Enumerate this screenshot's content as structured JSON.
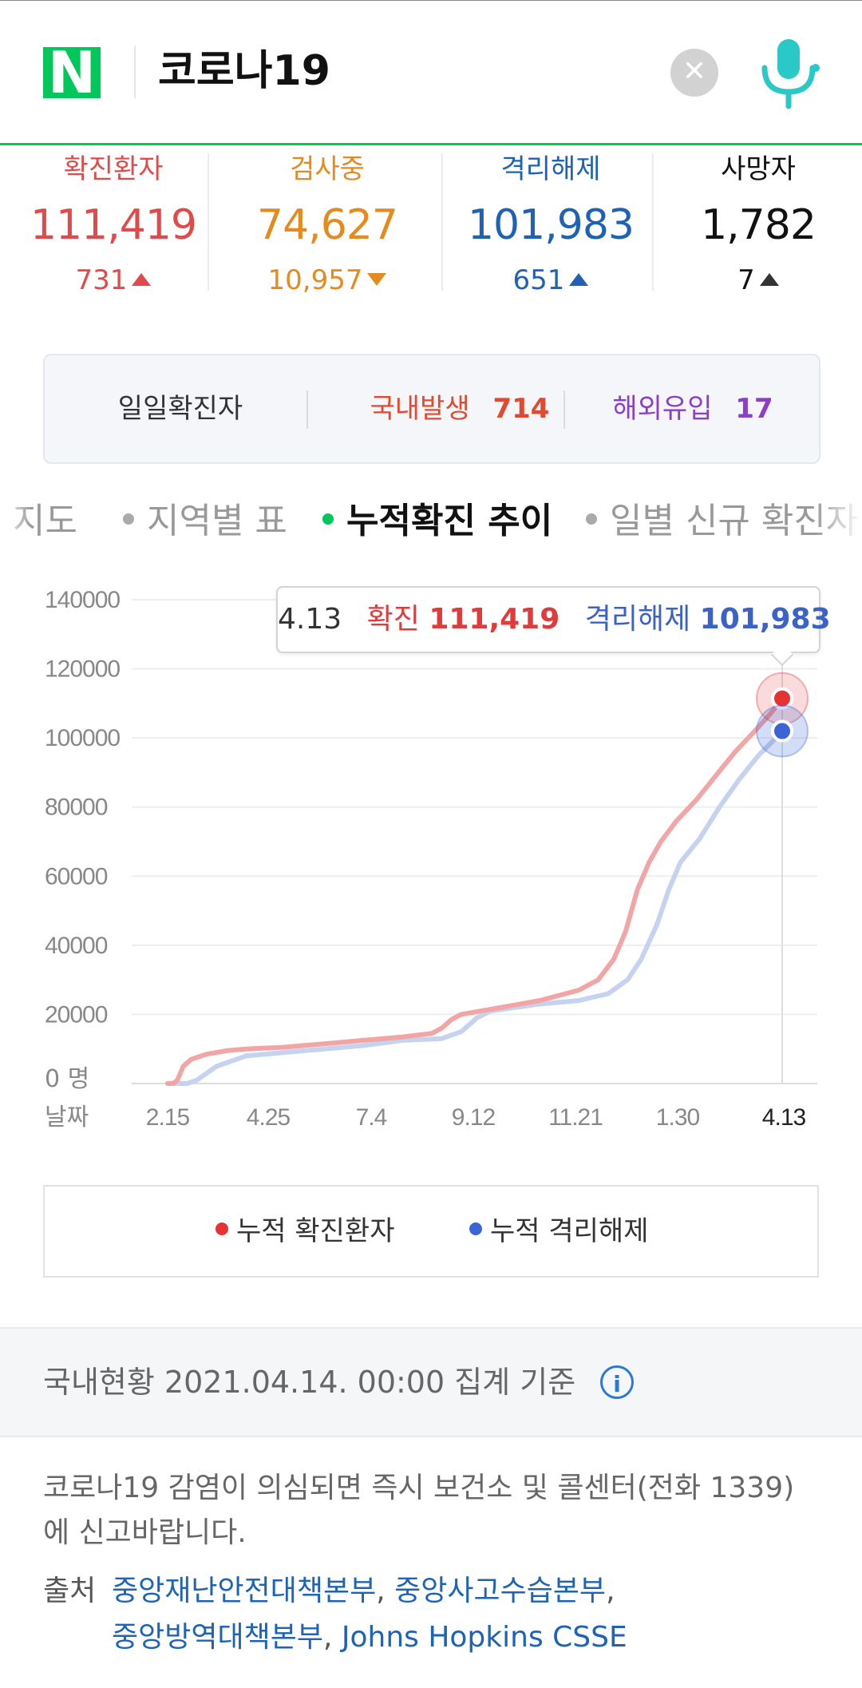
{
  "header": {
    "logo": "N",
    "query": "코로나19",
    "clear_icon": "close-icon",
    "mic_icon": "microphone-icon"
  },
  "stats": [
    {
      "label": "확진환자",
      "value": "111,419",
      "change": "731",
      "direction": "up",
      "color": "#e04a4a"
    },
    {
      "label": "검사중",
      "value": "74,627",
      "change": "10,957",
      "direction": "down",
      "color": "#e58a1f"
    },
    {
      "label": "격리해제",
      "value": "101,983",
      "change": "651",
      "direction": "up",
      "color": "#1f62b4"
    },
    {
      "label": "사망자",
      "value": "1,782",
      "change": "7",
      "direction": "up",
      "color": "#111111"
    }
  ],
  "daily": {
    "label": "일일확진자",
    "domestic_label": "국내발생",
    "domestic_value": "714",
    "overseas_label": "해외유입",
    "overseas_value": "17"
  },
  "tabs": [
    {
      "label": "지도",
      "active": false
    },
    {
      "label": "지역별 표",
      "active": false
    },
    {
      "label": "누적확진 추이",
      "active": true
    },
    {
      "label": "일별 신규 확진자",
      "active": false
    }
  ],
  "tooltip": {
    "date": "4.13",
    "confirmed_label": "확진",
    "confirmed_value": "111,419",
    "released_label": "격리해제",
    "released_value": "101,983"
  },
  "chart_data": {
    "type": "line",
    "title": "",
    "xlabel": "날짜",
    "ylabel": "",
    "y_zero_label": "0 명",
    "y_ticks": [
      "140000",
      "120000",
      "100000",
      "80000",
      "60000",
      "40000",
      "20000"
    ],
    "x_ticks": [
      "2.15",
      "4.25",
      "7.4",
      "9.12",
      "11.21",
      "1.30",
      "4.13"
    ],
    "ylim": [
      0,
      140000
    ],
    "grid": true,
    "colors": {
      "confirmed": "#f2a5a5",
      "released": "#c5d2f0",
      "confirmed_marker": "#e63232",
      "released_marker": "#3a64d8"
    },
    "series": [
      {
        "name": "누적 확진환자",
        "values": [
          [
            0,
            30
          ],
          [
            3,
            100
          ],
          [
            5,
            1000
          ],
          [
            8,
            5000
          ],
          [
            12,
            7000
          ],
          [
            20,
            8500
          ],
          [
            30,
            9500
          ],
          [
            40,
            10000
          ],
          [
            60,
            10500
          ],
          [
            80,
            11500
          ],
          [
            100,
            12500
          ],
          [
            120,
            13500
          ],
          [
            135,
            14500
          ],
          [
            140,
            16000
          ],
          [
            145,
            18500
          ],
          [
            150,
            20000
          ],
          [
            170,
            22000
          ],
          [
            190,
            24000
          ],
          [
            210,
            27000
          ],
          [
            220,
            30000
          ],
          [
            228,
            36000
          ],
          [
            234,
            44000
          ],
          [
            240,
            56000
          ],
          [
            246,
            64000
          ],
          [
            252,
            70000
          ],
          [
            260,
            76000
          ],
          [
            270,
            82000
          ],
          [
            280,
            89000
          ],
          [
            290,
            96000
          ],
          [
            300,
            102000
          ],
          [
            308,
            107000
          ],
          [
            314,
            111419
          ]
        ]
      },
      {
        "name": "누적 격리해제",
        "values": [
          [
            0,
            0
          ],
          [
            10,
            0
          ],
          [
            15,
            1000
          ],
          [
            20,
            3000
          ],
          [
            25,
            5000
          ],
          [
            30,
            6000
          ],
          [
            40,
            8000
          ],
          [
            60,
            9000
          ],
          [
            80,
            10000
          ],
          [
            100,
            11000
          ],
          [
            120,
            12500
          ],
          [
            140,
            13000
          ],
          [
            150,
            15000
          ],
          [
            158,
            19000
          ],
          [
            165,
            21000
          ],
          [
            190,
            23000
          ],
          [
            210,
            24000
          ],
          [
            225,
            26000
          ],
          [
            235,
            30000
          ],
          [
            242,
            36000
          ],
          [
            250,
            46000
          ],
          [
            256,
            56000
          ],
          [
            262,
            64000
          ],
          [
            272,
            71000
          ],
          [
            282,
            80000
          ],
          [
            292,
            88000
          ],
          [
            302,
            95000
          ],
          [
            310,
            99500
          ],
          [
            314,
            101983
          ]
        ]
      }
    ]
  },
  "legend": [
    {
      "label": "누적 확진환자",
      "color": "#e63232"
    },
    {
      "label": "누적 격리해제",
      "color": "#3a64d8"
    }
  ],
  "info": {
    "text": "국내현황 2021.04.14. 00:00 집계 기준",
    "icon": "info-icon"
  },
  "notice": "코로나19 감염이 의심되면 즉시 보건소 및 콜센터(전화 1339)에 신고바랍니다.",
  "source": {
    "label": "출처",
    "links": [
      "중앙재난안전대책본부",
      "중앙사고수습본부",
      "중앙방역대책본부",
      "Johns Hopkins CSSE"
    ]
  }
}
